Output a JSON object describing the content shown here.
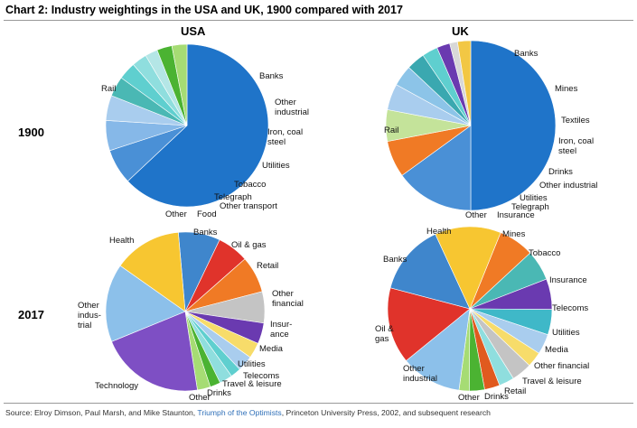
{
  "title": "Chart 2: Industry weightings in the USA and UK, 1900 compared with 2017",
  "columns": {
    "usa": "USA",
    "uk": "UK"
  },
  "rows": {
    "r1900": "1900",
    "r2017": "2017"
  },
  "source": {
    "prefix": "Source: Elroy Dimson, Paul Marsh, and Mike Staunton, ",
    "link": "Triumph of the Optimists",
    "suffix": ", Princeton University Press, 2002, and subsequent research"
  },
  "chart_data": [
    {
      "type": "pie",
      "title": "",
      "country": "USA",
      "year": "1900",
      "slices": [
        {
          "label": "Rail",
          "value": 63,
          "color": "#1f74c9"
        },
        {
          "label": "Banks",
          "value": 7,
          "color": "#4a90d6"
        },
        {
          "label": "Other industrial",
          "value": 6,
          "color": "#86b8e8"
        },
        {
          "label": "Iron, coal steel",
          "value": 5,
          "color": "#a9cdee"
        },
        {
          "label": "Utilities",
          "value": 4,
          "color": "#4ab8b4"
        },
        {
          "label": "Tobacco",
          "value": 3.5,
          "color": "#5fcfcf"
        },
        {
          "label": "Telegraph",
          "value": 3,
          "color": "#8fdede"
        },
        {
          "label": "Other transport",
          "value": 2.5,
          "color": "#b4e6e6"
        },
        {
          "label": "Food",
          "value": 3,
          "color": "#4bb332"
        },
        {
          "label": "Other",
          "value": 3,
          "color": "#a6dc74"
        }
      ]
    },
    {
      "type": "pie",
      "title": "",
      "country": "UK",
      "year": "1900",
      "slices": [
        {
          "label": "Rail",
          "value": 50,
          "color": "#1f74c9"
        },
        {
          "label": "Banks",
          "value": 15,
          "color": "#4a90d6"
        },
        {
          "label": "Mines",
          "value": 7,
          "color": "#f07a25"
        },
        {
          "label": "Textiles",
          "value": 6,
          "color": "#c4e39a"
        },
        {
          "label": "Iron, coal steel",
          "value": 5,
          "color": "#a9cdee"
        },
        {
          "label": "Drinks",
          "value": 4,
          "color": "#8cc4e8"
        },
        {
          "label": "Other industrial",
          "value": 3.5,
          "color": "#3aa8b0"
        },
        {
          "label": "Utilities",
          "value": 3,
          "color": "#5fcfcf"
        },
        {
          "label": "Telegraph",
          "value": 2.5,
          "color": "#6a3ab0"
        },
        {
          "label": "Insurance",
          "value": 1.5,
          "color": "#d8d8d8"
        },
        {
          "label": "Other",
          "value": 2.5,
          "color": "#f2c744"
        }
      ]
    },
    {
      "type": "pie",
      "title": "",
      "country": "USA",
      "year": "2017",
      "slices": [
        {
          "label": "Banks",
          "value": 8,
          "color": "#3f86cc"
        },
        {
          "label": "Oil & gas",
          "value": 6,
          "color": "#e0332b"
        },
        {
          "label": "Retail",
          "value": 7,
          "color": "#f07a25"
        },
        {
          "label": "Other financial",
          "value": 6,
          "color": "#c4c4c4"
        },
        {
          "label": "Insur-ance",
          "value": 4,
          "color": "#6a3ab0"
        },
        {
          "label": "Media",
          "value": 3,
          "color": "#f7dc6a"
        },
        {
          "label": "Utilities",
          "value": 3,
          "color": "#a9cdee"
        },
        {
          "label": "Telecoms",
          "value": 2,
          "color": "#5fcfcf"
        },
        {
          "label": "Travel & leisure",
          "value": 2.5,
          "color": "#8fdede"
        },
        {
          "label": "Drinks",
          "value": 2,
          "color": "#4bb332"
        },
        {
          "label": "Other",
          "value": 2.5,
          "color": "#a6dc74"
        },
        {
          "label": "Technology",
          "value": 20,
          "color": "#7e4fc4"
        },
        {
          "label": "Other industrial",
          "value": 15,
          "color": "#8cc0ea"
        },
        {
          "label": "Health",
          "value": 13,
          "color": "#f7c631"
        }
      ]
    },
    {
      "type": "pie",
      "title": "",
      "country": "UK",
      "year": "2017",
      "slices": [
        {
          "label": "Mines",
          "value": 7,
          "color": "#f07a25"
        },
        {
          "label": "Tobacco",
          "value": 6,
          "color": "#4ab8b4"
        },
        {
          "label": "Insurance",
          "value": 6,
          "color": "#6a3ab0"
        },
        {
          "label": "Telecoms",
          "value": 5,
          "color": "#3fb8c8"
        },
        {
          "label": "Utilities",
          "value": 4,
          "color": "#a9cdee"
        },
        {
          "label": "Media",
          "value": 3,
          "color": "#f7dc6a"
        },
        {
          "label": "Other financial",
          "value": 4,
          "color": "#c4c4c4"
        },
        {
          "label": "Travel & leisure",
          "value": 3,
          "color": "#8fdede"
        },
        {
          "label": "Retail",
          "value": 3,
          "color": "#e05a1f"
        },
        {
          "label": "Drinks",
          "value": 3,
          "color": "#4bb332"
        },
        {
          "label": "Other",
          "value": 2,
          "color": "#a6dc74"
        },
        {
          "label": "Other industrial",
          "value": 12,
          "color": "#8cc0ea"
        },
        {
          "label": "Oil & gas",
          "value": 15,
          "color": "#e0332b"
        },
        {
          "label": "Banks",
          "value": 14,
          "color": "#3f86cc"
        },
        {
          "label": "Health",
          "value": 13,
          "color": "#f7c631"
        }
      ]
    }
  ]
}
